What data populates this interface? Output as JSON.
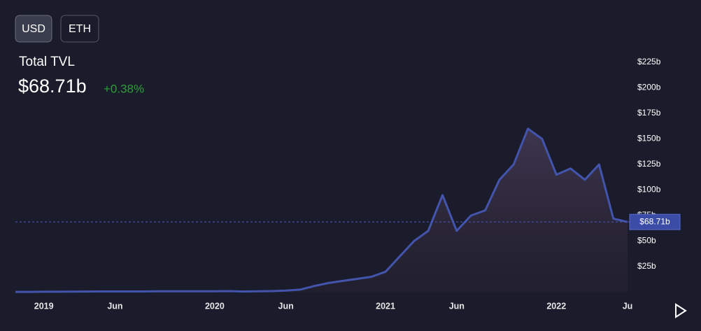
{
  "chart_data": {
    "type": "area",
    "title": "Total TVL",
    "toggles": [
      "USD",
      "ETH"
    ],
    "current": {
      "value": 68.71,
      "label": "$68.71b"
    },
    "change": "+0.38%",
    "color": "#4354ad",
    "x": [
      "2018-11",
      "2018-12",
      "2019-01",
      "2019-02",
      "2019-03",
      "2019-04",
      "2019-05",
      "2019-06",
      "2019-07",
      "2019-08",
      "2019-09",
      "2019-10",
      "2019-11",
      "2019-12",
      "2020-01",
      "2020-02",
      "2020-03",
      "2020-04",
      "2020-05",
      "2020-06",
      "2020-07",
      "2020-08",
      "2020-09",
      "2020-10",
      "2020-11",
      "2020-12",
      "2021-01",
      "2021-02",
      "2021-03",
      "2021-04",
      "2021-05",
      "2021-06",
      "2021-07",
      "2021-08",
      "2021-09",
      "2021-10",
      "2021-11",
      "2021-12",
      "2022-01",
      "2022-02",
      "2022-03",
      "2022-04",
      "2022-05",
      "2022-06"
    ],
    "values": [
      0.3,
      0.3,
      0.4,
      0.4,
      0.5,
      0.6,
      0.7,
      0.7,
      0.7,
      0.7,
      0.8,
      0.8,
      0.8,
      0.8,
      0.9,
      1.0,
      0.6,
      0.8,
      1.0,
      1.5,
      2.5,
      6,
      9,
      11,
      13,
      15,
      20,
      35,
      50,
      60,
      95,
      60,
      75,
      80,
      110,
      125,
      160,
      150,
      115,
      121,
      110,
      125,
      72,
      68.71
    ],
    "xlim": [
      "2018-11",
      "2022-06"
    ],
    "xticks": [
      {
        "value": "2019-01",
        "label": "2019"
      },
      {
        "value": "2019-06",
        "label": "Jun"
      },
      {
        "value": "2020-01",
        "label": "2020"
      },
      {
        "value": "2020-06",
        "label": "Jun"
      },
      {
        "value": "2021-01",
        "label": "2021"
      },
      {
        "value": "2021-06",
        "label": "Jun"
      },
      {
        "value": "2022-01",
        "label": "2022"
      },
      {
        "value": "2022-06",
        "label": "Ju"
      }
    ],
    "ylim": [
      0,
      235
    ],
    "yticks": [
      {
        "value": 25,
        "label": "$25b"
      },
      {
        "value": 50,
        "label": "$50b"
      },
      {
        "value": 75,
        "label": "$75b"
      },
      {
        "value": 100,
        "label": "$100b"
      },
      {
        "value": 125,
        "label": "$125b"
      },
      {
        "value": 150,
        "label": "$150b"
      },
      {
        "value": 175,
        "label": "$175b"
      },
      {
        "value": 200,
        "label": "$200b"
      },
      {
        "value": 225,
        "label": "$225b"
      }
    ]
  }
}
